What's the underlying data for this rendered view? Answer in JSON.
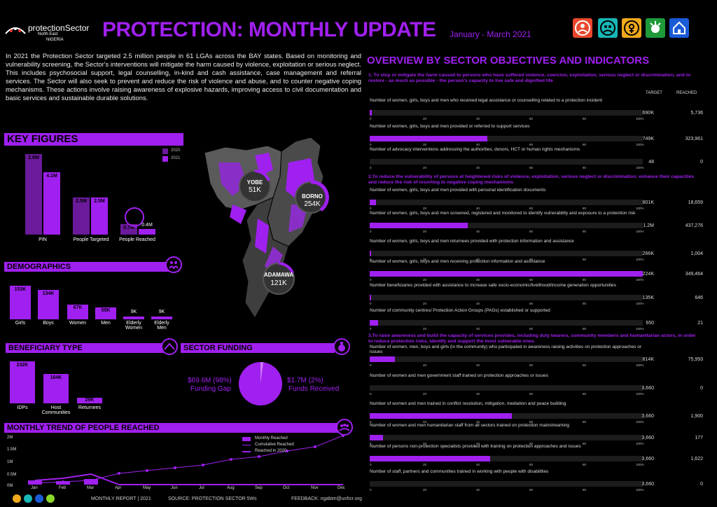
{
  "header": {
    "logo_main": "protectionSector",
    "logo_sub": "North East",
    "logo_country": "NIGERIA",
    "title": "PROTECTION: MONTHLY UPDATE",
    "period": "January - March 2021"
  },
  "intro": "In 2021 the Protection Sector targeted 2.5 million people in 61 LGAs across the BAY states. Based on monitoring and vulnerability screening, the Sector's interventions will mitigate the harm caused by violence, exploitation or serious neglect. This includes psychosocial support, legal counselling, in-kind and cash assistance, case management and referral services. The Sector will also seek to prevent and reduce the risk of violence and abuse, and to counter negative coping mechanisms. These actions involve raising awareness of explosive hazards, improving access to civil documentation and basic services and sustainable durable solutions.",
  "key_figures": {
    "title": "KEY FIGURES",
    "legend_2020": "2020",
    "legend_2021": "2021",
    "groups": [
      {
        "label": "PIN",
        "v2020": "2.9M",
        "v2021": "4.1M"
      },
      {
        "label": "People Targeted",
        "v2020": "2.5M",
        "v2021": "2.5M"
      },
      {
        "label": "People Reached",
        "v2020": "0.7M",
        "v2021": "0.4M"
      }
    ]
  },
  "map": {
    "yobe_name": "YOBE",
    "yobe_value": "51K",
    "borno_name": "BORNO",
    "borno_value": "254K",
    "adamawa_name": "ADAMAWA",
    "adamawa_value": "121K"
  },
  "demographics": {
    "title": "DEMOGRAPHICS",
    "items": [
      {
        "label": "Girls",
        "value": "153K"
      },
      {
        "label": "Boys",
        "value": "134K"
      },
      {
        "label": "Women",
        "value": "67K"
      },
      {
        "label": "Men",
        "value": "55K"
      },
      {
        "label": "Elderly Women",
        "value": "9K"
      },
      {
        "label": "Elderly Men",
        "value": "9K"
      }
    ]
  },
  "beneficiary": {
    "title": "BENEFICIARY TYPE",
    "items": [
      {
        "label": "IDPs",
        "value": "232K"
      },
      {
        "label": "Host Communities",
        "value": "164K"
      },
      {
        "label": "Returnees",
        "value": "29K"
      }
    ]
  },
  "funding": {
    "title": "SECTOR FUNDING",
    "gap_value": "$69.6M (98%)",
    "gap_label": "Funding Gap",
    "received_value": "$1.7M (2%)",
    "received_label": "Funds Received"
  },
  "trend": {
    "title": "MONTHLY TREND OF PEOPLE REACHED",
    "legend_monthly": "Monthly Reached",
    "legend_cumulative": "Cumulative Reached",
    "legend_2020": "Reached in 2020",
    "y_ticks": [
      "2M",
      "1.5M",
      "1M",
      "0.5M",
      "0M"
    ],
    "months": [
      "Jan",
      "Feb",
      "Mar",
      "Apr",
      "May",
      "Jun",
      "Jul",
      "Aug",
      "Sep",
      "Oct",
      "Nov",
      "Dec"
    ]
  },
  "overview": {
    "title": "OVERVIEW BY SECTOR OBJECTIVES AND INDICATORS",
    "col_target": "TARGET",
    "col_reached": "REACHED",
    "axis_ticks": [
      "0",
      "20",
      "40",
      "60",
      "80",
      "100%"
    ],
    "objectives": [
      "1. To stop or mitigate the harm caused to persons who have suffered violence, coercion, exploitation, serious neglect or discrimination, and to restore - as much as possible - the person's capacity to live safe and dignified life",
      "2.To reduce the vulnerability of persons at heightened risks of violence, exploitation, serious neglect or discrimination; enhance their capacities and reduce the risk of resorting to negative coping mechanisms",
      "3.To raise awareness and build the capacity of services provides, including duty bearers, community members and humanitarian actors, in order to reduce protection risks, identify and support the most vulnerable ones."
    ],
    "indicators": [
      {
        "text": "Number of women, girls, boys and men who received legal assistance or counselling related to a protection incident",
        "target": "690K",
        "reached": "5,736"
      },
      {
        "text": "Number of women, girls, boys and men provided or referred to support services",
        "target": "749K",
        "reached": "323,961"
      },
      {
        "text": "Number of advocacy interventions addressing the authorities, donors, HCT or human rights mechanisms",
        "target": "48",
        "reached": "0"
      },
      {
        "text": "Number of women, girls, boys and men provided with personal identification documents",
        "target": "801K",
        "reached": "18,659"
      },
      {
        "text": "Number of women, girls, boys and men screened, registered and monitored to identify vulnerability and exposure to a protection risk",
        "target": "1.2M",
        "reached": "437,276"
      },
      {
        "text": "Number of women, girls, boys and men returnees provided with protection information and assistance",
        "target": "266K",
        "reached": "1,004"
      },
      {
        "text": "Number of women, girls, boys and men receiving protection information and assistance",
        "target": "224K",
        "reached": "349,464"
      },
      {
        "text": "Number beneficiaries provided with assistance to increase safe socio-economic/livelihood/income generation opportunities",
        "target": "135K",
        "reached": "646"
      },
      {
        "text": "Number of community centres/ Protection Action Groups (PAGs) established or supported",
        "target": "650",
        "reached": "21"
      },
      {
        "text": "Number of women, men, boys and girls (in the community) who participated in awareness raising activities on protection approaches or issues",
        "target": "814K",
        "reached": "75,993"
      },
      {
        "text": "Number of women and men government staff trained on protection approaches or issues",
        "target": "3,660",
        "reached": "0"
      },
      {
        "text": "Number of women and men trained in conflict resolution, mitigation, mediation and peace building",
        "target": "3,660",
        "reached": "1,900"
      },
      {
        "text": "Number of women and men humanitarian staff from all sectors trained on protection mainstreaming",
        "target": "3,660",
        "reached": "177"
      },
      {
        "text": "Number of persons non-protection specialists provided with training on protection approaches and issues",
        "target": "3,660",
        "reached": "1,622"
      },
      {
        "text": "Number of staff, partners and communities trained in working with people with disabilities",
        "target": "3,660",
        "reached": "0"
      }
    ]
  },
  "footer": {
    "report": "MONTHLY REPORT | 2021",
    "source": "SOURCE: PROTECTION SECTOR 5Ws",
    "feedback": "FEEDBACK: ngabim@unhcr.org"
  }
}
